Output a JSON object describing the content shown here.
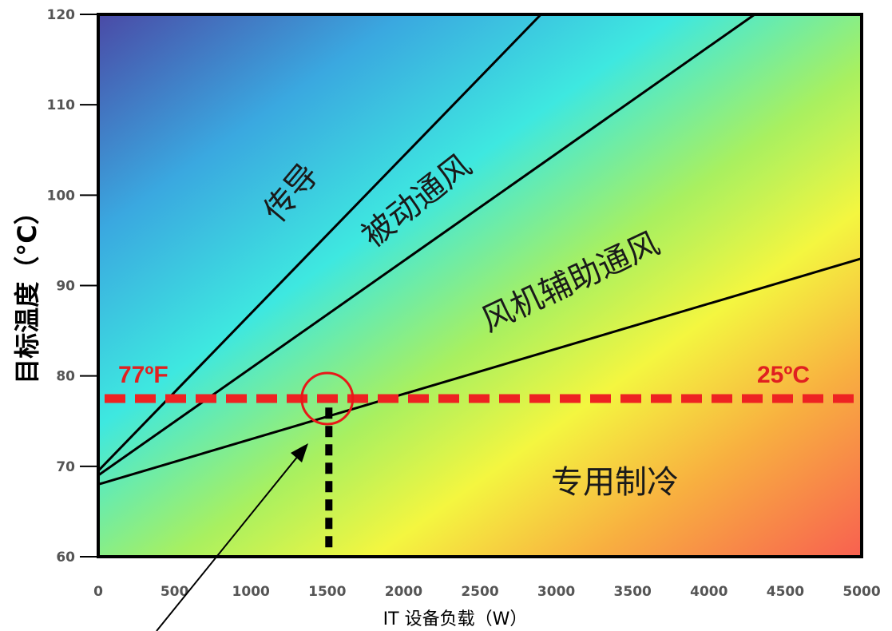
{
  "chart_data": {
    "type": "line",
    "xlabel": "IT 设备负载（W）",
    "ylabel": "目标温度（°C）",
    "xlim": [
      0,
      5000
    ],
    "ylim": [
      60,
      120
    ],
    "xticks": [
      0,
      500,
      1000,
      1500,
      2000,
      2500,
      3000,
      3500,
      4000,
      4500,
      5000
    ],
    "yticks": [
      60,
      70,
      80,
      90,
      100,
      110,
      120
    ],
    "grid": false,
    "series": [
      {
        "x": [
          0,
          2900
        ],
        "y": [
          69.5,
          120
        ]
      },
      {
        "x": [
          0,
          4300
        ],
        "y": [
          69,
          120
        ]
      },
      {
        "x": [
          0,
          5000
        ],
        "y": [
          68,
          93
        ]
      }
    ],
    "regions": [
      "传导",
      "被动通风",
      "风机辅助通风",
      "专用制冷"
    ],
    "reference_line": {
      "y": 77.5,
      "label_left": "77ºF",
      "label_right": "25ºC",
      "color": "#ee2222"
    },
    "marker": {
      "x": 1500,
      "y": 77.5,
      "vertical_line_from_y": 60,
      "vertical_line_to_y": 76.5
    }
  }
}
